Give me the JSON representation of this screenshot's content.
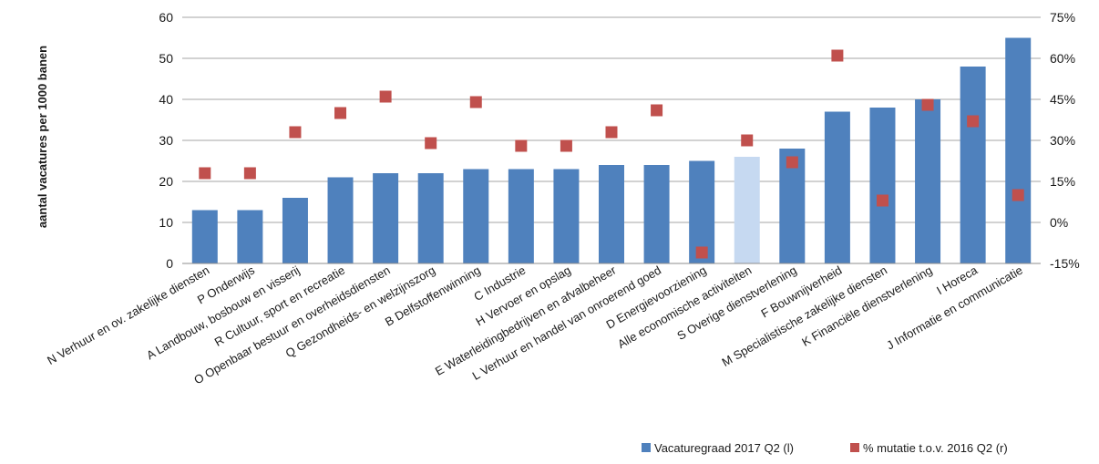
{
  "chart_data": {
    "type": "bar",
    "title": "",
    "ylabel": "aantal vacatures per 1000 banen",
    "y2label": "",
    "ylim": [
      0,
      60
    ],
    "yticks": [
      "0",
      "10",
      "20",
      "30",
      "40",
      "50",
      "60"
    ],
    "y2lim": [
      -15,
      75
    ],
    "y2ticks": [
      "-15%",
      "0%",
      "15%",
      "30%",
      "45%",
      "60%",
      "75%"
    ],
    "grid": true,
    "legend_position": "bottom-right",
    "categories": [
      "N Verhuur en ov. zakelijke diensten",
      "P Onderwijs",
      "A Landbouw, bosbouw en visserij",
      "R Cultuur, sport en recreatie",
      "O Openbaar bestuur en overheidsdiensten",
      "Q Gezondheids- en welzijnszorg",
      "B Delfstoffenwinning",
      "C Industrie",
      "H Vervoer en opslag",
      "E Waterleidingbedrijven en afvalbeheer",
      "L Verhuur en handel van onroerend goed",
      "D Energievoorziening",
      "Alle economische activiteiten",
      "S Overige dienstverlening",
      "F Bouwnijverheid",
      "M Specialistische zakelijke diensten",
      "K Financiële dienstverlening",
      "I Horeca",
      "J Informatie en communicatie"
    ],
    "highlight_category": "Alle economische activiteiten",
    "series": [
      {
        "name": "Vacaturegraad 2017 Q2 (l)",
        "type": "bar",
        "axis": "left",
        "color": "#4f81bd",
        "highlight_color": "#c6d9f1",
        "values": [
          13,
          13,
          16,
          21,
          22,
          22,
          23,
          23,
          23,
          24,
          24,
          25,
          26,
          28,
          37,
          38,
          40,
          48,
          55
        ]
      },
      {
        "name": "% mutatie t.o.v. 2016 Q2 (r)",
        "type": "scatter",
        "axis": "right",
        "color": "#c0504d",
        "values": [
          18,
          18,
          33,
          40,
          46,
          29,
          44,
          28,
          28,
          33,
          41,
          -11,
          30,
          22,
          61,
          8,
          43,
          37,
          10
        ]
      }
    ]
  }
}
